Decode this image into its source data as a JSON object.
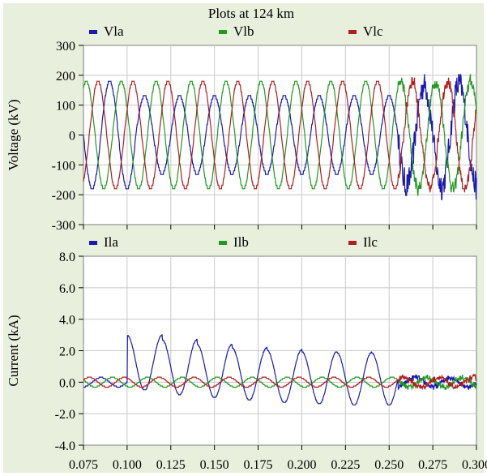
{
  "figure_title": "Plots at 124 km",
  "chart_data": [
    {
      "type": "line",
      "ylabel": "Voltage (kV)",
      "xlim": [
        0.075,
        0.3
      ],
      "ylim": [
        -300,
        300
      ],
      "yticks": [
        300,
        200,
        100,
        0,
        -100,
        -200,
        -300
      ],
      "ytick_labels": [
        "300",
        "200",
        "100",
        "0",
        "-100",
        "-200",
        "-300"
      ],
      "grid": true,
      "legend_position": "top",
      "fault_time": 0.255,
      "series": [
        {
          "name": "Vla",
          "color": "#1a1ab0",
          "amplitude": 180,
          "post_fault_amplitude": 180,
          "frequency_hz": 50,
          "phase_deg": -90,
          "offset": 0,
          "post_fault_offset": 0,
          "disturbed_after_fault": true
        },
        {
          "name": "Vlb",
          "color": "#1f9a1f",
          "amplitude": 180,
          "post_fault_amplitude": 180,
          "frequency_hz": 50,
          "phase_deg": 150,
          "offset": 0,
          "post_fault_offset": 0,
          "disturbed_after_fault": false
        },
        {
          "name": "Vlc",
          "color": "#b21e1e",
          "amplitude": 180,
          "post_fault_amplitude": 180,
          "frequency_hz": 50,
          "phase_deg": 30,
          "offset": 0,
          "post_fault_offset": 0,
          "disturbed_after_fault": false
        }
      ],
      "note_vla_fault_window": [
        0.105,
        0.255
      ],
      "vla_fault_amplitude": 130
    },
    {
      "type": "line",
      "ylabel": "Current (kA)",
      "xlabel": "",
      "xlim": [
        0.075,
        0.3
      ],
      "ylim": [
        -4.0,
        8.0
      ],
      "yticks": [
        8.0,
        6.0,
        4.0,
        2.0,
        0.0,
        -2.0,
        -4.0
      ],
      "ytick_labels": [
        "8.0",
        "6.0",
        "4.0",
        "2.0",
        "0.0",
        "-2.0",
        "-4.0"
      ],
      "xticks": [
        0.075,
        0.1,
        0.125,
        0.15,
        0.175,
        0.2,
        0.225,
        0.25,
        0.275,
        0.3
      ],
      "xtick_labels": [
        "0.075",
        "0.100",
        "0.125",
        "0.150",
        "0.175",
        "0.200",
        "0.225",
        "0.250",
        "0.275",
        "0.300"
      ],
      "grid": true,
      "legend_position": "top",
      "fault_window": [
        0.1,
        0.255
      ],
      "series": [
        {
          "name": "Ila",
          "color": "#1a1ab0",
          "prefault_amplitude": 0.3,
          "fault_peaks": [
            3.0,
            2.7,
            2.4,
            2.2,
            2.05,
            1.95,
            1.9,
            1.85
          ],
          "fault_troughs": [
            -0.5,
            -0.8,
            -1.0,
            -1.15,
            -1.3,
            -1.4,
            -1.45
          ]
        },
        {
          "name": "Ilb",
          "color": "#1f9a1f",
          "amplitude": 0.3,
          "phase_deg": -120
        },
        {
          "name": "Ilc",
          "color": "#b21e1e",
          "amplitude": 0.3,
          "phase_deg": 120
        }
      ]
    }
  ]
}
